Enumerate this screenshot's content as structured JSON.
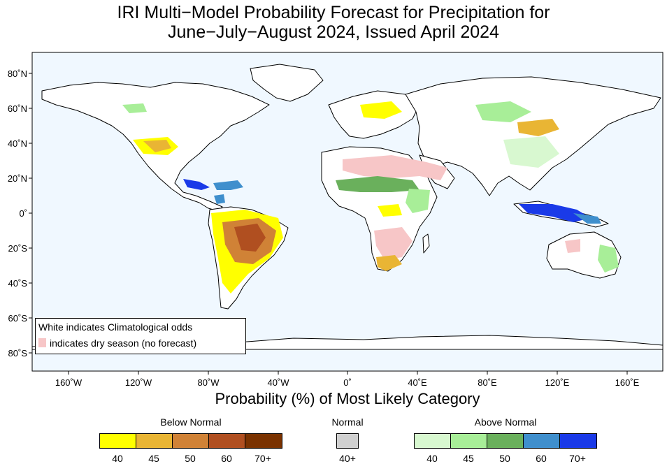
{
  "title_line1": "IRI Multi−Model Probability Forecast for Precipitation for",
  "title_line2": "June−July−August 2024, Issued April 2024",
  "map": {
    "lon_labels": [
      "160˚W",
      "120˚W",
      "80˚W",
      "40˚W",
      "0˚",
      "40˚E",
      "80˚E",
      "120˚E",
      "160˚E"
    ],
    "lat_labels": [
      "80˚N",
      "60˚N",
      "40˚N",
      "20˚N",
      "0˚",
      "20˚S",
      "40˚S",
      "60˚S",
      "80˚S"
    ],
    "ocean_color": "#f0f8ff"
  },
  "note": {
    "line1": "White indicates Climatological odds",
    "line2": "indicates dry season (no forecast)",
    "dry_color": "#f7c6c7"
  },
  "axis_title": "Probability (%) of Most Likely Category",
  "legend": {
    "below": {
      "label": "Below Normal",
      "colors": [
        "#ffff00",
        "#e9b534",
        "#d08236",
        "#b04f20",
        "#7a3200"
      ],
      "ticks": [
        "40",
        "45",
        "50",
        "60",
        "70+"
      ]
    },
    "normal": {
      "label": "Normal",
      "color": "#d0d0d0",
      "tick": "40+"
    },
    "above": {
      "label": "Above Normal",
      "colors": [
        "#d8f8d0",
        "#a8ee98",
        "#6ab05c",
        "#3f8fcd",
        "#1a3ae8"
      ],
      "ticks": [
        "40",
        "45",
        "50",
        "60",
        "70+"
      ]
    }
  }
}
